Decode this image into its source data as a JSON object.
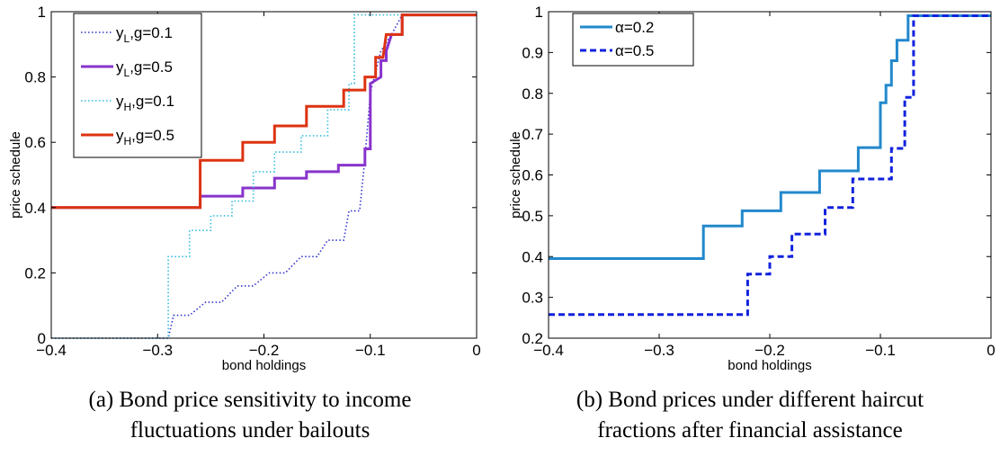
{
  "captions": [
    {
      "line1": "(a) Bond price sensitivity to income",
      "line2": "fluctuations under bailouts"
    },
    {
      "line1": "(b) Bond prices under different haircut",
      "line2": "fractions after financial assistance"
    }
  ],
  "chart_data": [
    {
      "type": "line",
      "title": "",
      "xlabel": "bond holdings",
      "ylabel": "price schedule",
      "xlim": [
        -0.4,
        0
      ],
      "ylim": [
        0,
        1
      ],
      "xticks": [
        "−0.4",
        "−0.3",
        "−0.2",
        "−0.1",
        "0"
      ],
      "xtick_values": [
        -0.4,
        -0.3,
        -0.2,
        -0.1,
        0
      ],
      "yticks": [
        "0",
        "0.2",
        "0.4",
        "0.6",
        "0.8",
        "1"
      ],
      "ytick_values": [
        0,
        0.2,
        0.4,
        0.6,
        0.8,
        1
      ],
      "grid": false,
      "legend_position": "top-left",
      "series": [
        {
          "name": "y_L,g=0.1",
          "legend_main": "y",
          "legend_sub": "L",
          "legend_rest": ",g=0.1",
          "color": "#3333cc",
          "dash": "1.5,2.5",
          "width": 1.6,
          "step": true,
          "points": [
            [
              -0.4,
              0
            ],
            [
              -0.29,
              0
            ],
            [
              -0.285,
              0.07
            ],
            [
              -0.27,
              0.07
            ],
            [
              -0.255,
              0.11
            ],
            [
              -0.24,
              0.11
            ],
            [
              -0.225,
              0.16
            ],
            [
              -0.21,
              0.16
            ],
            [
              -0.195,
              0.2
            ],
            [
              -0.18,
              0.2
            ],
            [
              -0.165,
              0.25
            ],
            [
              -0.15,
              0.25
            ],
            [
              -0.14,
              0.3
            ],
            [
              -0.125,
              0.3
            ],
            [
              -0.12,
              0.39
            ],
            [
              -0.11,
              0.39
            ],
            [
              -0.105,
              0.55
            ],
            [
              -0.1,
              0.75
            ],
            [
              -0.09,
              0.88
            ],
            [
              -0.08,
              0.93
            ],
            [
              -0.07,
              0.99
            ],
            [
              0,
              0.99
            ]
          ]
        },
        {
          "name": "y_L,g=0.5",
          "legend_main": "y",
          "legend_sub": "L",
          "legend_rest": ",g=0.5",
          "color": "#8833cc",
          "dash": "",
          "width": 3,
          "step": true,
          "points": [
            [
              -0.4,
              0.4
            ],
            [
              -0.26,
              0.4
            ],
            [
              -0.26,
              0.435
            ],
            [
              -0.22,
              0.435
            ],
            [
              -0.22,
              0.46
            ],
            [
              -0.19,
              0.46
            ],
            [
              -0.19,
              0.49
            ],
            [
              -0.16,
              0.49
            ],
            [
              -0.16,
              0.51
            ],
            [
              -0.13,
              0.51
            ],
            [
              -0.13,
              0.53
            ],
            [
              -0.105,
              0.53
            ],
            [
              -0.105,
              0.58
            ],
            [
              -0.1,
              0.58
            ],
            [
              -0.1,
              0.78
            ],
            [
              -0.09,
              0.8
            ],
            [
              -0.09,
              0.85
            ],
            [
              -0.085,
              0.85
            ],
            [
              -0.085,
              0.88
            ],
            [
              -0.08,
              0.93
            ],
            [
              -0.07,
              0.93
            ],
            [
              -0.07,
              0.99
            ],
            [
              0,
              0.99
            ]
          ]
        },
        {
          "name": "y_H,g=0.1",
          "legend_main": "y",
          "legend_sub": "H",
          "legend_rest": ",g=0.1",
          "color": "#33bbdd",
          "dash": "1.5,2.5",
          "width": 1.6,
          "step": true,
          "points": [
            [
              -0.4,
              0
            ],
            [
              -0.29,
              0
            ],
            [
              -0.29,
              0.25
            ],
            [
              -0.27,
              0.25
            ],
            [
              -0.27,
              0.33
            ],
            [
              -0.25,
              0.33
            ],
            [
              -0.25,
              0.375
            ],
            [
              -0.23,
              0.375
            ],
            [
              -0.23,
              0.42
            ],
            [
              -0.21,
              0.42
            ],
            [
              -0.21,
              0.51
            ],
            [
              -0.19,
              0.51
            ],
            [
              -0.19,
              0.57
            ],
            [
              -0.165,
              0.57
            ],
            [
              -0.165,
              0.62
            ],
            [
              -0.14,
              0.62
            ],
            [
              -0.14,
              0.7
            ],
            [
              -0.12,
              0.7
            ],
            [
              -0.12,
              0.78
            ],
            [
              -0.115,
              0.78
            ],
            [
              -0.115,
              0.99
            ],
            [
              0,
              0.99
            ]
          ]
        },
        {
          "name": "y_H,g=0.5",
          "legend_main": "y",
          "legend_sub": "H",
          "legend_rest": ",g=0.5",
          "color": "#dd3311",
          "dash": "",
          "width": 3,
          "step": true,
          "points": [
            [
              -0.4,
              0.4
            ],
            [
              -0.26,
              0.4
            ],
            [
              -0.26,
              0.545
            ],
            [
              -0.22,
              0.545
            ],
            [
              -0.22,
              0.6
            ],
            [
              -0.19,
              0.6
            ],
            [
              -0.19,
              0.65
            ],
            [
              -0.16,
              0.65
            ],
            [
              -0.16,
              0.71
            ],
            [
              -0.125,
              0.71
            ],
            [
              -0.125,
              0.76
            ],
            [
              -0.105,
              0.76
            ],
            [
              -0.105,
              0.8
            ],
            [
              -0.095,
              0.8
            ],
            [
              -0.095,
              0.86
            ],
            [
              -0.088,
              0.86
            ],
            [
              -0.085,
              0.93
            ],
            [
              -0.07,
              0.93
            ],
            [
              -0.07,
              0.99
            ],
            [
              0,
              0.99
            ]
          ]
        }
      ]
    },
    {
      "type": "line",
      "title": "",
      "xlabel": "bond holdings",
      "ylabel": "price schedule",
      "xlim": [
        -0.4,
        0
      ],
      "ylim": [
        0.2,
        1
      ],
      "xticks": [
        "−0.4",
        "−0.3",
        "−0.2",
        "−0.1",
        "0"
      ],
      "xtick_values": [
        -0.4,
        -0.3,
        -0.2,
        -0.1,
        0
      ],
      "yticks": [
        "0.2",
        "0.3",
        "0.4",
        "0.5",
        "0.6",
        "0.7",
        "0.8",
        "0.9",
        "1"
      ],
      "ytick_values": [
        0.2,
        0.3,
        0.4,
        0.5,
        0.6,
        0.7,
        0.8,
        0.9,
        1
      ],
      "grid": false,
      "legend_position": "top-left",
      "series": [
        {
          "name": "α=0.2",
          "legend_main": "α=0.2",
          "legend_sub": "",
          "legend_rest": "",
          "color": "#2288cc",
          "dash": "",
          "width": 3,
          "step": true,
          "points": [
            [
              -0.4,
              0.395
            ],
            [
              -0.26,
              0.395
            ],
            [
              -0.26,
              0.475
            ],
            [
              -0.225,
              0.475
            ],
            [
              -0.225,
              0.512
            ],
            [
              -0.19,
              0.512
            ],
            [
              -0.19,
              0.557
            ],
            [
              -0.155,
              0.557
            ],
            [
              -0.155,
              0.61
            ],
            [
              -0.12,
              0.61
            ],
            [
              -0.12,
              0.667
            ],
            [
              -0.1,
              0.667
            ],
            [
              -0.1,
              0.777
            ],
            [
              -0.095,
              0.777
            ],
            [
              -0.095,
              0.82
            ],
            [
              -0.09,
              0.82
            ],
            [
              -0.09,
              0.88
            ],
            [
              -0.085,
              0.88
            ],
            [
              -0.085,
              0.93
            ],
            [
              -0.075,
              0.93
            ],
            [
              -0.075,
              0.99
            ],
            [
              0,
              0.99
            ]
          ]
        },
        {
          "name": "α=0.5",
          "legend_main": "α=0.5",
          "legend_sub": "",
          "legend_rest": "",
          "color": "#1122dd",
          "dash": "7,4",
          "width": 3,
          "step": true,
          "points": [
            [
              -0.4,
              0.258
            ],
            [
              -0.22,
              0.258
            ],
            [
              -0.22,
              0.357
            ],
            [
              -0.2,
              0.357
            ],
            [
              -0.2,
              0.4
            ],
            [
              -0.18,
              0.4
            ],
            [
              -0.18,
              0.455
            ],
            [
              -0.15,
              0.455
            ],
            [
              -0.15,
              0.52
            ],
            [
              -0.125,
              0.52
            ],
            [
              -0.125,
              0.59
            ],
            [
              -0.09,
              0.59
            ],
            [
              -0.09,
              0.665
            ],
            [
              -0.078,
              0.665
            ],
            [
              -0.078,
              0.79
            ],
            [
              -0.07,
              0.79
            ],
            [
              -0.07,
              0.99
            ],
            [
              0,
              0.99
            ]
          ]
        }
      ]
    }
  ]
}
